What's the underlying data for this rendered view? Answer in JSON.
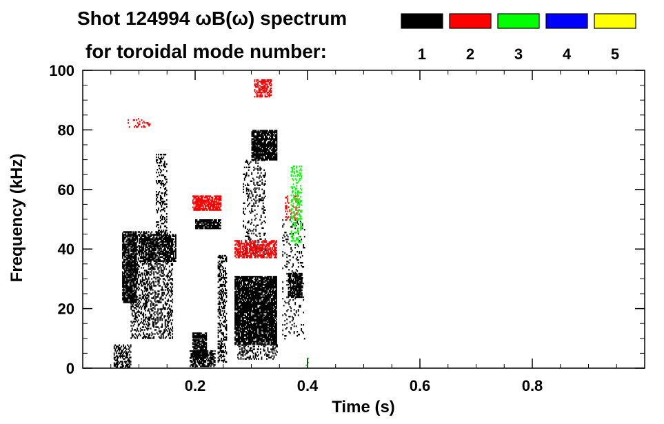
{
  "chart_data": {
    "type": "heatmap",
    "title_line1": "Shot 124994 ωB(ω) spectrum",
    "title_line2": "for toroidal mode number:",
    "xlabel": "Time (s)",
    "ylabel": "Frequency (kHz)",
    "xlim": [
      0.0,
      1.0
    ],
    "ylim": [
      0,
      100
    ],
    "x_ticks": [
      0.2,
      0.4,
      0.6,
      0.8
    ],
    "x_tick_labels": [
      "0.2",
      "0.4",
      "0.6",
      "0.8"
    ],
    "y_ticks": [
      0,
      20,
      40,
      60,
      80,
      100
    ],
    "y_tick_labels": [
      "0",
      "20",
      "40",
      "60",
      "80",
      "100"
    ],
    "legend": [
      {
        "label": "1",
        "color": "#000000"
      },
      {
        "label": "2",
        "color": "#ff0000"
      },
      {
        "label": "3",
        "color": "#00ff00"
      },
      {
        "label": "4",
        "color": "#0000ff"
      },
      {
        "label": "5",
        "color": "#ffff00"
      }
    ],
    "regions": [
      {
        "mode": 1,
        "t": [
          0.055,
          0.085
        ],
        "f": [
          0.5,
          8
        ],
        "density": 0.5
      },
      {
        "mode": 1,
        "t": [
          0.07,
          0.095
        ],
        "f": [
          22,
          46
        ],
        "density": 0.75
      },
      {
        "mode": 1,
        "t": [
          0.085,
          0.16
        ],
        "f": [
          10,
          46
        ],
        "density": 0.35
      },
      {
        "mode": 1,
        "t": [
          0.1,
          0.165
        ],
        "f": [
          36,
          45
        ],
        "density": 0.6
      },
      {
        "mode": 1,
        "t": [
          0.13,
          0.15
        ],
        "f": [
          45,
          72
        ],
        "density": 0.3
      },
      {
        "mode": 1,
        "t": [
          0.195,
          0.22
        ],
        "f": [
          4,
          12
        ],
        "density": 0.8
      },
      {
        "mode": 1,
        "t": [
          0.19,
          0.235
        ],
        "f": [
          0.5,
          6
        ],
        "density": 0.7
      },
      {
        "mode": 1,
        "t": [
          0.2,
          0.245
        ],
        "f": [
          47,
          50
        ],
        "density": 0.85
      },
      {
        "mode": 1,
        "t": [
          0.24,
          0.255
        ],
        "f": [
          2,
          38
        ],
        "density": 0.4
      },
      {
        "mode": 1,
        "t": [
          0.27,
          0.345
        ],
        "f": [
          8,
          31
        ],
        "density": 0.85
      },
      {
        "mode": 1,
        "t": [
          0.275,
          0.345
        ],
        "f": [
          3,
          8
        ],
        "density": 0.35
      },
      {
        "mode": 1,
        "t": [
          0.285,
          0.325
        ],
        "f": [
          38,
          70
        ],
        "density": 0.2
      },
      {
        "mode": 1,
        "t": [
          0.3,
          0.345
        ],
        "f": [
          70,
          80
        ],
        "density": 0.85
      },
      {
        "mode": 1,
        "t": [
          0.365,
          0.39
        ],
        "f": [
          24,
          32
        ],
        "density": 0.8
      },
      {
        "mode": 1,
        "t": [
          0.355,
          0.395
        ],
        "f": [
          10,
          50
        ],
        "density": 0.12
      },
      {
        "mode": 2,
        "t": [
          0.195,
          0.245
        ],
        "f": [
          53,
          58
        ],
        "density": 0.75
      },
      {
        "mode": 2,
        "t": [
          0.27,
          0.345
        ],
        "f": [
          37,
          43
        ],
        "density": 0.65
      },
      {
        "mode": 2,
        "t": [
          0.305,
          0.335
        ],
        "f": [
          91,
          97
        ],
        "density": 0.55
      },
      {
        "mode": 2,
        "t": [
          0.36,
          0.385
        ],
        "f": [
          50,
          58
        ],
        "density": 0.25
      },
      {
        "mode": 2,
        "t": [
          0.08,
          0.12
        ],
        "f": [
          81,
          84
        ],
        "density": 0.25
      },
      {
        "mode": 3,
        "t": [
          0.37,
          0.39
        ],
        "f": [
          42,
          68
        ],
        "density": 0.3
      },
      {
        "mode": 3,
        "t": [
          0.395,
          0.405
        ],
        "f": [
          1,
          4
        ],
        "density": 0.2
      }
    ]
  }
}
